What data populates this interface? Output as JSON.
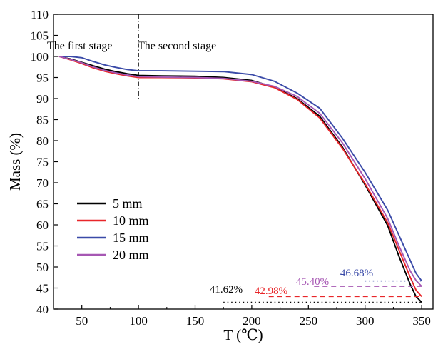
{
  "chart_data": {
    "type": "line",
    "xlabel": "T (℃)",
    "ylabel": "Mass (%)",
    "xlim": [
      25,
      360
    ],
    "ylim": [
      40,
      110
    ],
    "x_ticks": [
      50,
      100,
      150,
      200,
      250,
      300,
      350
    ],
    "y_ticks": [
      40,
      45,
      50,
      55,
      60,
      65,
      70,
      75,
      80,
      85,
      90,
      95,
      100,
      105,
      110
    ],
    "grid": false,
    "legend_position": "left",
    "stage_divider": {
      "x": 100,
      "y_range": [
        90,
        110
      ]
    },
    "stages": [
      {
        "label": "The first stage",
        "x": 30,
        "y": 102
      },
      {
        "label": "The second stage",
        "x": 110,
        "y": 102
      }
    ],
    "series": [
      {
        "name": "5 mm",
        "color": "#000000",
        "x": [
          30,
          40,
          50,
          60,
          70,
          80,
          90,
          100,
          120,
          150,
          175,
          200,
          220,
          240,
          260,
          280,
          300,
          320,
          330,
          340,
          345,
          350
        ],
        "y": [
          100,
          99.4,
          98.6,
          97.8,
          97.0,
          96.4,
          95.9,
          95.5,
          95.4,
          95.3,
          95.0,
          94.3,
          92.7,
          90.0,
          85.8,
          78.5,
          69.5,
          59.8,
          52.5,
          45.8,
          43.0,
          41.62
        ]
      },
      {
        "name": "10 mm",
        "color": "#e8262a",
        "x": [
          30,
          40,
          50,
          60,
          70,
          80,
          90,
          100,
          120,
          150,
          175,
          200,
          220,
          240,
          260,
          280,
          300,
          320,
          330,
          340,
          345,
          350
        ],
        "y": [
          100,
          99.2,
          98.3,
          97.3,
          96.5,
          95.9,
          95.4,
          95.0,
          95.0,
          94.9,
          94.7,
          94.0,
          92.6,
          89.8,
          85.4,
          78.2,
          69.8,
          60.5,
          54.0,
          47.5,
          44.5,
          42.98
        ]
      },
      {
        "name": "15 mm",
        "color": "#3a4aa8",
        "x": [
          30,
          40,
          50,
          60,
          70,
          80,
          90,
          100,
          120,
          150,
          175,
          200,
          220,
          240,
          260,
          280,
          300,
          320,
          330,
          340,
          345,
          350
        ],
        "y": [
          100,
          100,
          99.7,
          98.8,
          98.0,
          97.4,
          96.9,
          96.6,
          96.6,
          96.5,
          96.4,
          95.7,
          94.1,
          91.3,
          87.7,
          80.6,
          72.5,
          63.5,
          57.5,
          51.5,
          48.5,
          46.68
        ]
      },
      {
        "name": "20 mm",
        "color": "#a657b3",
        "x": [
          30,
          40,
          50,
          60,
          70,
          80,
          90,
          100,
          120,
          150,
          175,
          200,
          220,
          240,
          260,
          280,
          300,
          320,
          330,
          340,
          345,
          350
        ],
        "y": [
          100,
          99.3,
          98.5,
          97.5,
          96.7,
          96.1,
          95.6,
          95.2,
          95.1,
          95.0,
          94.8,
          94.1,
          92.9,
          90.5,
          86.5,
          79.5,
          71.0,
          61.5,
          55.0,
          49.0,
          46.8,
          45.4
        ]
      }
    ],
    "annotations": [
      {
        "text": "41.62%",
        "color": "#000000",
        "value": 41.62,
        "dash": "dotted",
        "x_range": [
          175,
          350
        ]
      },
      {
        "text": "42.98%",
        "color": "#e8262a",
        "value": 42.98,
        "dash": "dashed",
        "x_range": [
          215,
          350
        ]
      },
      {
        "text": "45.40%",
        "color": "#a657b3",
        "value": 45.4,
        "dash": "dashed",
        "x_range": [
          255,
          350
        ]
      },
      {
        "text": "46.68%",
        "color": "#3a4aa8",
        "value": 46.68,
        "dash": "dotted",
        "x_range": [
          300,
          350
        ]
      }
    ]
  }
}
